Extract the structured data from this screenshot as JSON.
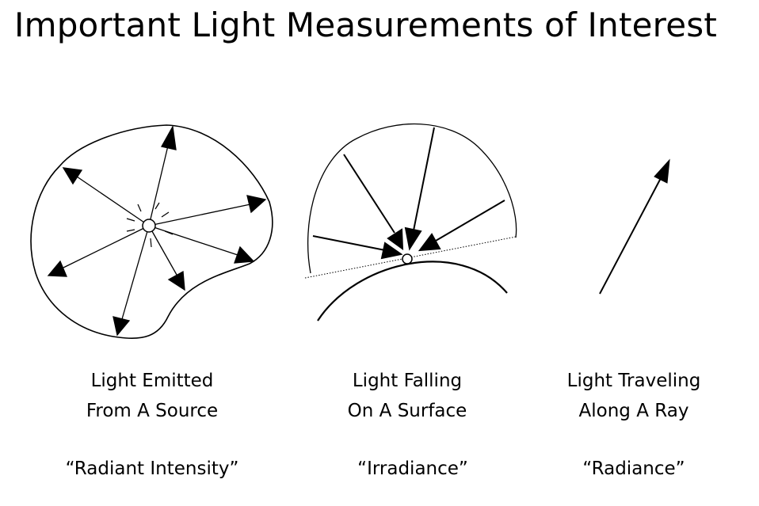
{
  "slide": {
    "title": "Important Light Measurements of Interest"
  },
  "panels": [
    {
      "caption_line1": "Light Emitted",
      "caption_line2": "From A Source",
      "term": "“Radiant Intensity”"
    },
    {
      "caption_line1": "Light Falling",
      "caption_line2": "On A Surface",
      "term": "“Irradiance”"
    },
    {
      "caption_line1": "Light Traveling",
      "caption_line2": "Along A Ray",
      "term": "“Radiance”"
    }
  ],
  "colors": {
    "ink": "#000000",
    "background": "#ffffff"
  }
}
